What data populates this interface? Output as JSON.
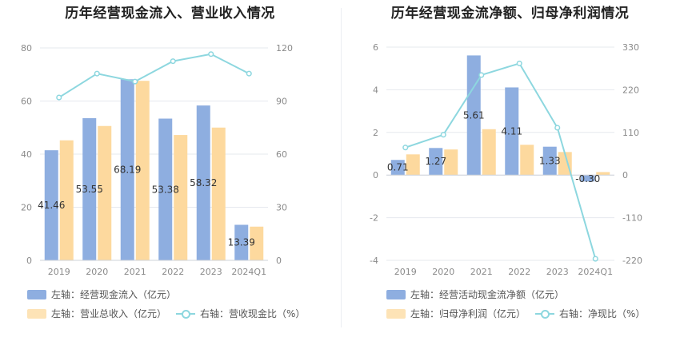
{
  "charts": [
    {
      "title": "历年经营现金流入、营业收入情况",
      "legend": {
        "bar1": "左轴：经营现金流入（亿元）",
        "bar2": "左轴：营业总收入（亿元）",
        "line": "右轴：营收现金比（%）"
      }
    },
    {
      "title": "历年经营现金流净额、归母净利润情况",
      "legend": {
        "bar1": "左轴：经营活动现金流净额（亿元）",
        "bar2": "左轴：归母净利润（亿元）",
        "line": "右轴：净现比（%）"
      }
    }
  ],
  "colors": {
    "bar1": "#8eaee0",
    "bar2": "#fdd99e",
    "line": "#8dd7df",
    "grid": "#e6e8ee",
    "axis_text": "#8a8a8a"
  },
  "chart_data": [
    {
      "type": "bar",
      "categories": [
        "2019",
        "2020",
        "2021",
        "2022",
        "2023",
        "2024Q1"
      ],
      "series": [
        {
          "name": "经营现金流入",
          "axis": "left",
          "values": [
            41.46,
            53.55,
            68.19,
            53.38,
            58.32,
            13.39
          ],
          "labels": [
            "41.46",
            "53.55",
            "68.19",
            "53.38",
            "58.32",
            "13.39"
          ]
        },
        {
          "name": "营业总收入",
          "axis": "left",
          "values": [
            45.2,
            50.6,
            67.6,
            47.2,
            50.0,
            12.7
          ]
        },
        {
          "name": "营收现金比",
          "axis": "right",
          "type": "line",
          "values": [
            92,
            105.5,
            101,
            112.5,
            116.5,
            105.5
          ]
        }
      ],
      "yleft": {
        "min": 0,
        "max": 80,
        "ticks": [
          0,
          20,
          40,
          60,
          80
        ]
      },
      "yright": {
        "min": 0,
        "max": 120,
        "ticks": [
          0,
          30,
          60,
          90,
          120
        ]
      }
    },
    {
      "type": "bar",
      "categories": [
        "2019",
        "2020",
        "2021",
        "2022",
        "2023",
        "2024Q1"
      ],
      "series": [
        {
          "name": "经营活动现金流净额",
          "axis": "left",
          "values": [
            0.71,
            1.27,
            5.61,
            4.11,
            1.33,
            -0.3
          ],
          "labels": [
            "0.71",
            "1.27",
            "5.61",
            "4.11",
            "1.33",
            "-0.30"
          ]
        },
        {
          "name": "归母净利润",
          "axis": "left",
          "values": [
            0.97,
            1.2,
            2.15,
            1.42,
            1.08,
            0.14
          ]
        },
        {
          "name": "净现比",
          "axis": "right",
          "type": "line",
          "values": [
            71,
            104,
            258,
            288,
            122,
            -216
          ]
        }
      ],
      "yleft": {
        "min": -4,
        "max": 6,
        "ticks": [
          -4,
          -2,
          0,
          2,
          4,
          6
        ]
      },
      "yright": {
        "min": -220,
        "max": 330,
        "ticks": [
          -220,
          -110,
          0,
          110,
          220,
          330
        ]
      }
    }
  ]
}
